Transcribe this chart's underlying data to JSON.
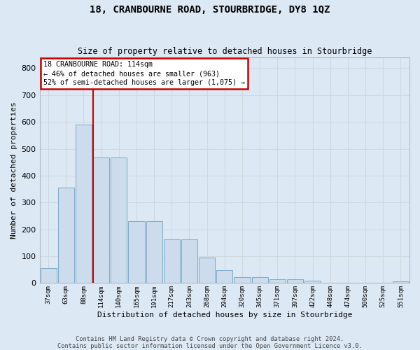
{
  "title": "18, CRANBOURNE ROAD, STOURBRIDGE, DY8 1QZ",
  "subtitle": "Size of property relative to detached houses in Stourbridge",
  "xlabel": "Distribution of detached houses by size in Stourbridge",
  "ylabel": "Number of detached properties",
  "footer_line1": "Contains HM Land Registry data © Crown copyright and database right 2024.",
  "footer_line2": "Contains public sector information licensed under the Open Government Licence v3.0.",
  "categories": [
    "37sqm",
    "63sqm",
    "88sqm",
    "114sqm",
    "140sqm",
    "165sqm",
    "191sqm",
    "217sqm",
    "243sqm",
    "268sqm",
    "294sqm",
    "320sqm",
    "345sqm",
    "371sqm",
    "397sqm",
    "422sqm",
    "448sqm",
    "474sqm",
    "500sqm",
    "525sqm",
    "551sqm"
  ],
  "values": [
    57,
    355,
    590,
    468,
    468,
    230,
    230,
    163,
    163,
    95,
    47,
    22,
    22,
    15,
    15,
    10,
    2,
    2,
    2,
    2,
    7
  ],
  "bar_color": "#ccdcec",
  "bar_edge_color": "#7aaac8",
  "red_line_index": 3,
  "annotation_line1": "18 CRANBOURNE ROAD: 114sqm",
  "annotation_line2": "← 46% of detached houses are smaller (963)",
  "annotation_line3": "52% of semi-detached houses are larger (1,075) →",
  "annotation_box_color": "#ffffff",
  "annotation_box_edge": "#cc0000",
  "grid_color": "#d0d8e0",
  "background_color": "#dce8f4",
  "ylim": [
    0,
    840
  ],
  "yticks": [
    0,
    100,
    200,
    300,
    400,
    500,
    600,
    700,
    800
  ]
}
